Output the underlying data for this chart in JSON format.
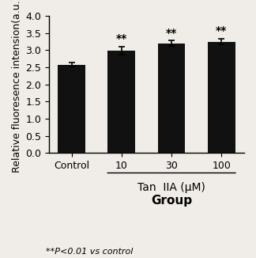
{
  "categories": [
    "Control",
    "10",
    "30",
    "100"
  ],
  "values": [
    2.58,
    2.98,
    3.2,
    3.25
  ],
  "errors": [
    0.06,
    0.12,
    0.08,
    0.09
  ],
  "bar_color": "#111111",
  "bar_width": 0.55,
  "ylim": [
    0,
    4.0
  ],
  "yticks": [
    0,
    0.5,
    1.0,
    1.5,
    2.0,
    2.5,
    3.0,
    3.5,
    4.0
  ],
  "ylabel": "Relative fluoresence intension(a.u.)",
  "xlabel_main": "Tan  IIA (μM)",
  "xlabel_group": "Group",
  "significance": [
    "",
    "**",
    "**",
    "**"
  ],
  "footnote": "**P<0.01 vs control",
  "background_color": "#f0ede8",
  "plot_bg_color": "#f0ede8",
  "ylabel_fontsize": 9,
  "xlabel_fontsize": 10,
  "tick_fontsize": 9,
  "sig_fontsize": 10,
  "footnote_fontsize": 8
}
